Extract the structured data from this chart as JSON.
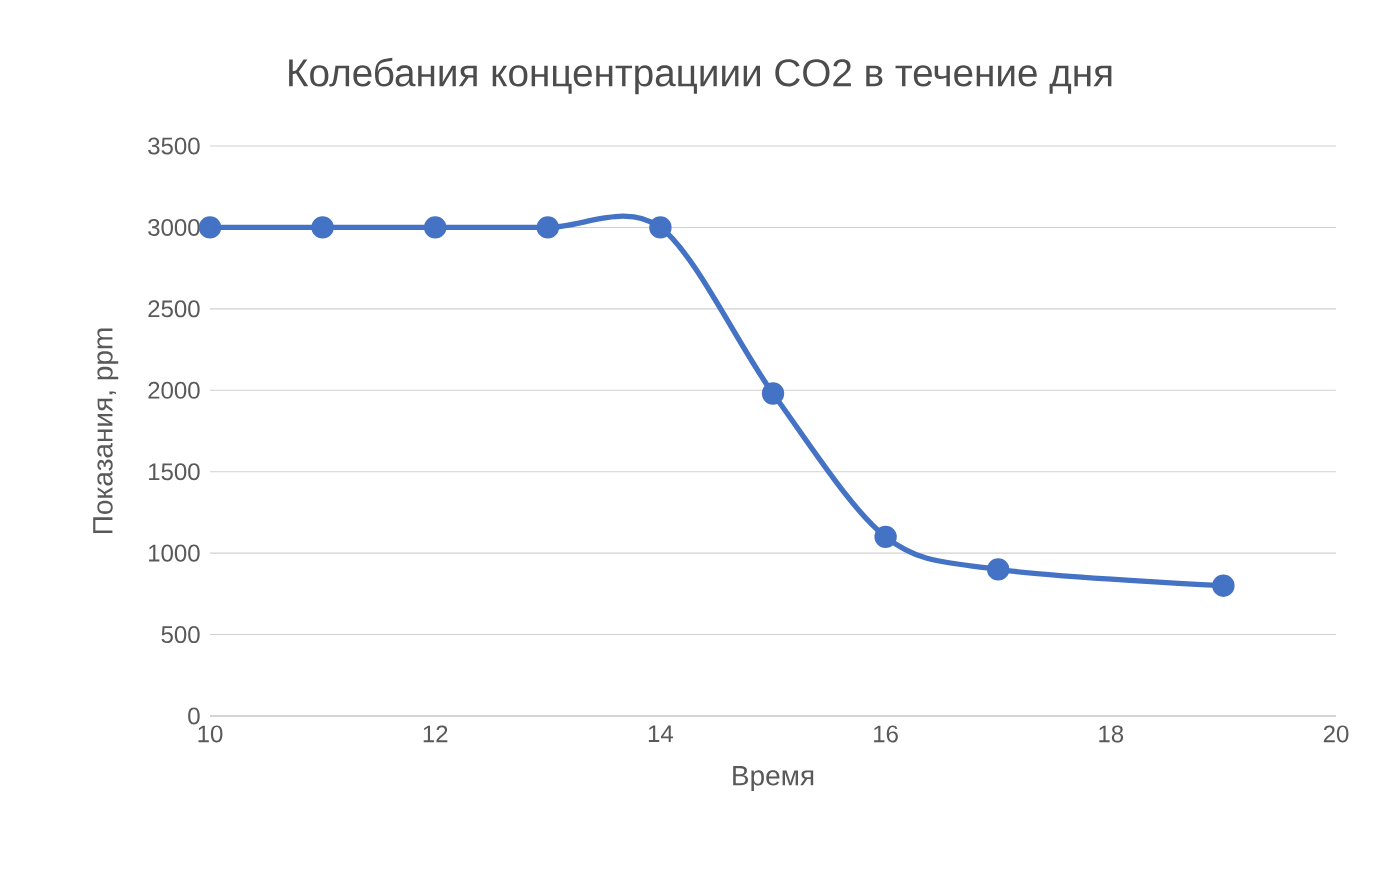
{
  "chart_data": {
    "type": "line",
    "title": "Колебания концентрациии CO2 в течение дня",
    "xlabel": "Время",
    "ylabel": "Показания, ppm",
    "x": [
      10,
      11,
      12,
      13,
      14,
      15,
      16,
      17,
      19
    ],
    "series": [
      {
        "color": "#4472c4",
        "values": [
          3000,
          3000,
          3000,
          3000,
          3000,
          1980,
          1100,
          900,
          800
        ]
      }
    ],
    "xlim": [
      10,
      20
    ],
    "xticks": [
      10,
      12,
      14,
      16,
      18,
      20
    ],
    "ylim": [
      0,
      3500
    ],
    "yticks": [
      0,
      500,
      1000,
      1500,
      2000,
      2500,
      3000,
      3500
    ],
    "grid": "y",
    "marker": "circle",
    "line_style": "solid"
  }
}
